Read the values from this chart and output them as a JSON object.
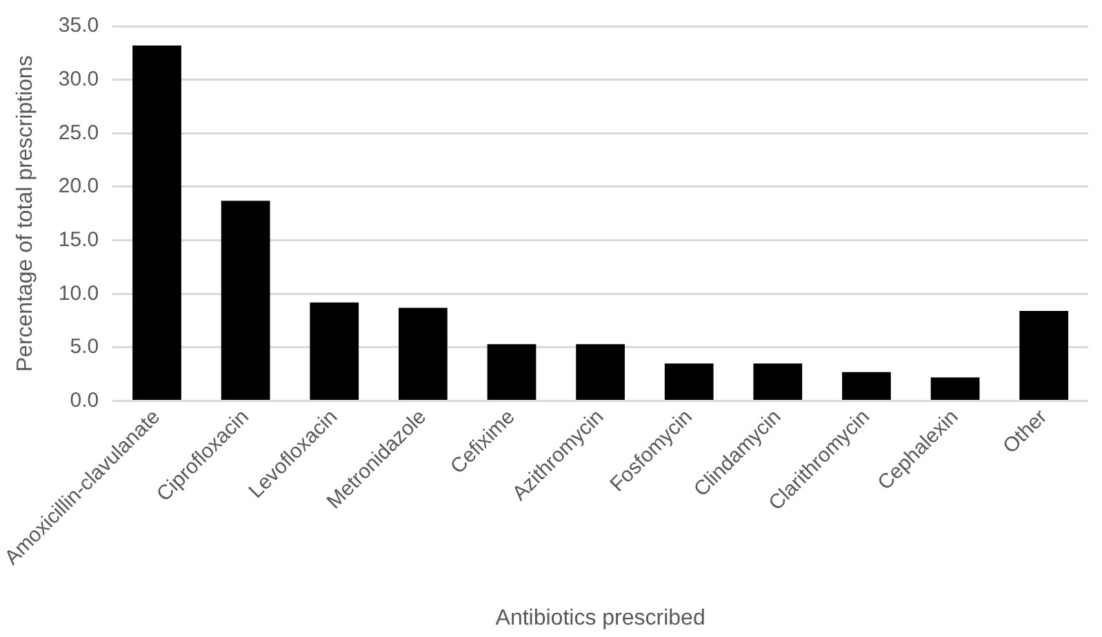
{
  "chart_data": {
    "type": "bar",
    "xlabel": "Antibiotics prescribed",
    "ylabel": "Percentage of total prescriptions",
    "categories": [
      "Amoxicillin-clavulanate",
      "Ciprofloxacin",
      "Levofloxacin",
      "Metronidazole",
      "Cefixime",
      "Azithromycin",
      "Fosfomycin",
      "Clindamycin",
      "Clarithromycin",
      "Cephalexin",
      "Other"
    ],
    "values": [
      33.2,
      18.7,
      9.2,
      8.7,
      5.3,
      5.3,
      3.5,
      3.5,
      2.7,
      2.2,
      8.4
    ],
    "color": "#000000",
    "ylim": [
      0,
      35
    ],
    "yticks": [
      {
        "value": 0,
        "label": "0.0"
      },
      {
        "value": 5,
        "label": "5.0"
      },
      {
        "value": 10,
        "label": "10.0"
      },
      {
        "value": 15,
        "label": "15.0"
      },
      {
        "value": 20,
        "label": "20.0"
      },
      {
        "value": 25,
        "label": "25.0"
      },
      {
        "value": 30,
        "label": "30.0"
      },
      {
        "value": 35,
        "label": "35.0"
      }
    ],
    "grid": "y",
    "legend": false
  }
}
